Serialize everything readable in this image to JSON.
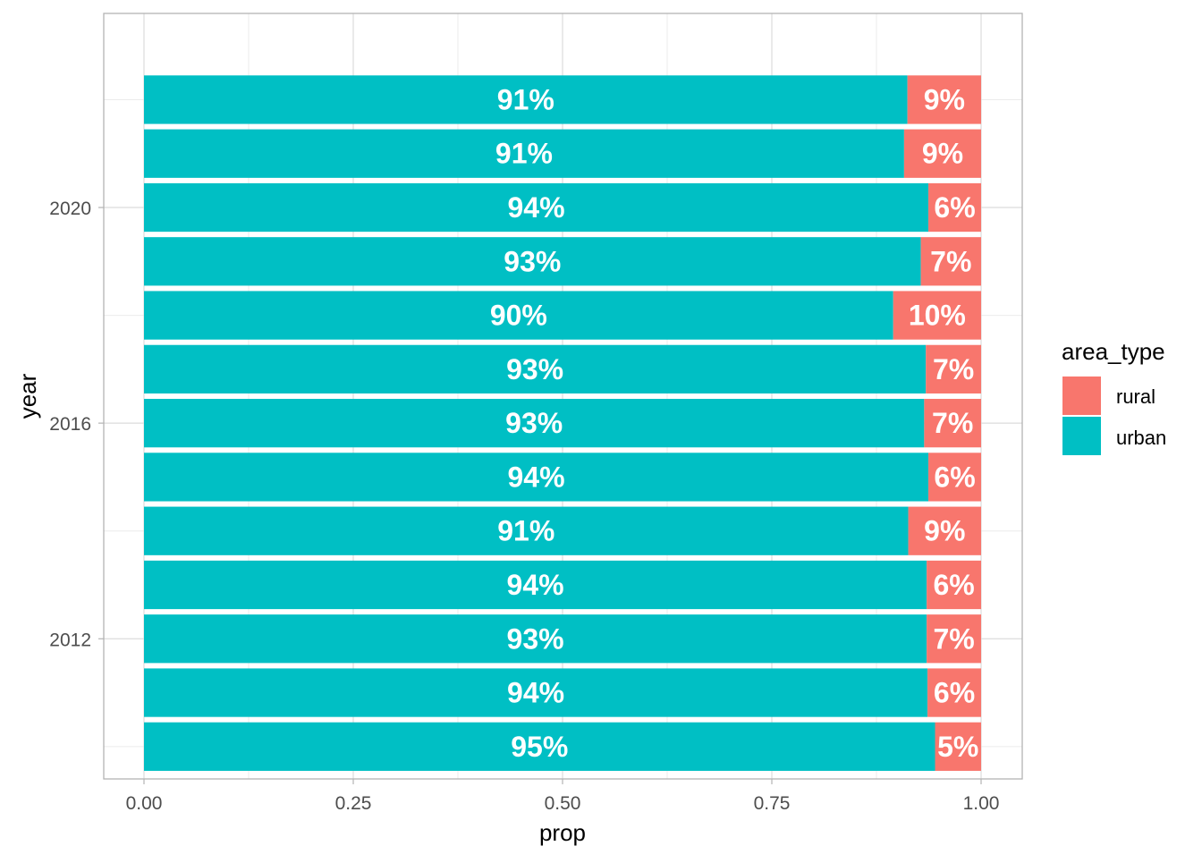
{
  "colors": {
    "rural": "#F8766D",
    "urban": "#00BFC4",
    "grid_major": "#DCDCDC",
    "grid_minor": "#EBEBEB",
    "panel_border": "#B3B3B3",
    "axis_text": "#4D4D4D",
    "title_text": "#000000",
    "bar_label": "#FFFFFF"
  },
  "chart_data": {
    "type": "bar",
    "orientation": "horizontal",
    "stacked": true,
    "xlabel": "prop",
    "ylabel": "year",
    "xlim": [
      0,
      1
    ],
    "x_ticks": [
      "0.00",
      "0.25",
      "0.50",
      "0.75",
      "1.00"
    ],
    "x_tick_values": [
      0,
      0.25,
      0.5,
      0.75,
      1
    ],
    "y_ticks": [
      "2012",
      "2016",
      "2020"
    ],
    "y_tick_values": [
      2012,
      2016,
      2020
    ],
    "ylim": [
      2009.4,
      2023.6
    ],
    "grid": true,
    "legend": {
      "title": "area_type",
      "position": "right",
      "entries": [
        "rural",
        "urban"
      ]
    },
    "categories": [
      2010,
      2011,
      2012,
      2013,
      2014,
      2015,
      2016,
      2017,
      2018,
      2019,
      2020,
      2021,
      2022
    ],
    "series": [
      {
        "name": "urban",
        "values": [
          0.945,
          0.936,
          0.935,
          0.935,
          0.913,
          0.937,
          0.932,
          0.934,
          0.895,
          0.928,
          0.937,
          0.908,
          0.912
        ],
        "labels": [
          "95%",
          "94%",
          "93%",
          "94%",
          "91%",
          "94%",
          "93%",
          "93%",
          "90%",
          "93%",
          "94%",
          "91%",
          "91%"
        ]
      },
      {
        "name": "rural",
        "values": [
          0.055,
          0.064,
          0.065,
          0.065,
          0.087,
          0.063,
          0.068,
          0.066,
          0.105,
          0.072,
          0.063,
          0.092,
          0.088
        ],
        "labels": [
          "5%",
          "6%",
          "7%",
          "6%",
          "9%",
          "6%",
          "7%",
          "7%",
          "10%",
          "7%",
          "6%",
          "9%",
          "9%"
        ]
      }
    ]
  }
}
